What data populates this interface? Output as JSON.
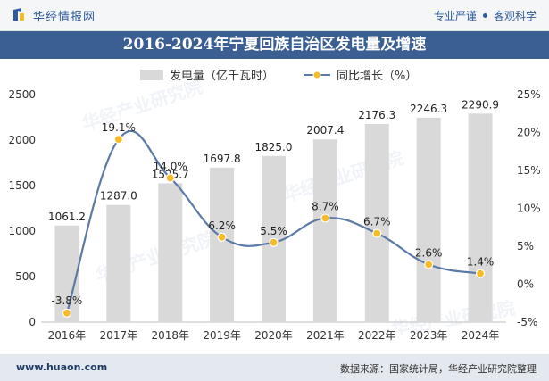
{
  "header": {
    "brand": "华经情报网",
    "slogan_left": "专业严谨",
    "slogan_right": "客观科学"
  },
  "chart_title": "2016-2024年宁夏回族自治区发电量及增速",
  "watermark": "华经产业研究院",
  "footer": {
    "url": "www.huaon.com",
    "source": "数据来源：国家统计局，华经产业研究院整理"
  },
  "colors": {
    "bar": "#d9d9d9",
    "line": "#5b7aa6",
    "marker": "#f5bc2a",
    "title_bg": "#3b5f93",
    "brand": "#2f5c9b"
  },
  "chart_data": {
    "type": "bar+line",
    "categories": [
      "2016年",
      "2017年",
      "2018年",
      "2019年",
      "2020年",
      "2021年",
      "2022年",
      "2023年",
      "2024年"
    ],
    "series": [
      {
        "name": "发电量（亿千瓦时）",
        "type": "bar",
        "axis": "left",
        "values": [
          1061.2,
          1287.0,
          1525.7,
          1697.8,
          1825.0,
          2007.4,
          2176.3,
          2246.3,
          2290.9
        ],
        "labels": [
          "1061.2",
          "1287.0",
          "1525.7",
          "1697.8",
          "1825.0",
          "2007.4",
          "2176.3",
          "2246.3",
          "2290.9"
        ]
      },
      {
        "name": "同比增长（%）",
        "type": "line",
        "axis": "right",
        "values": [
          -3.8,
          19.1,
          14.0,
          6.2,
          5.5,
          8.7,
          6.7,
          2.6,
          1.4
        ],
        "labels": [
          "-3.8%",
          "19.1%",
          "14.0%",
          "6.2%",
          "5.5%",
          "8.7%",
          "6.7%",
          "2.6%",
          "1.4%"
        ]
      }
    ],
    "y_left": {
      "min": 0,
      "max": 2500,
      "ticks": [
        "0",
        "500",
        "1000",
        "1500",
        "2000",
        "2500"
      ]
    },
    "y_right": {
      "min": -5,
      "max": 25,
      "ticks": [
        "-5%",
        "0%",
        "5%",
        "10%",
        "15%",
        "20%",
        "25%"
      ]
    },
    "legend_position": "top-center",
    "grid": false
  }
}
